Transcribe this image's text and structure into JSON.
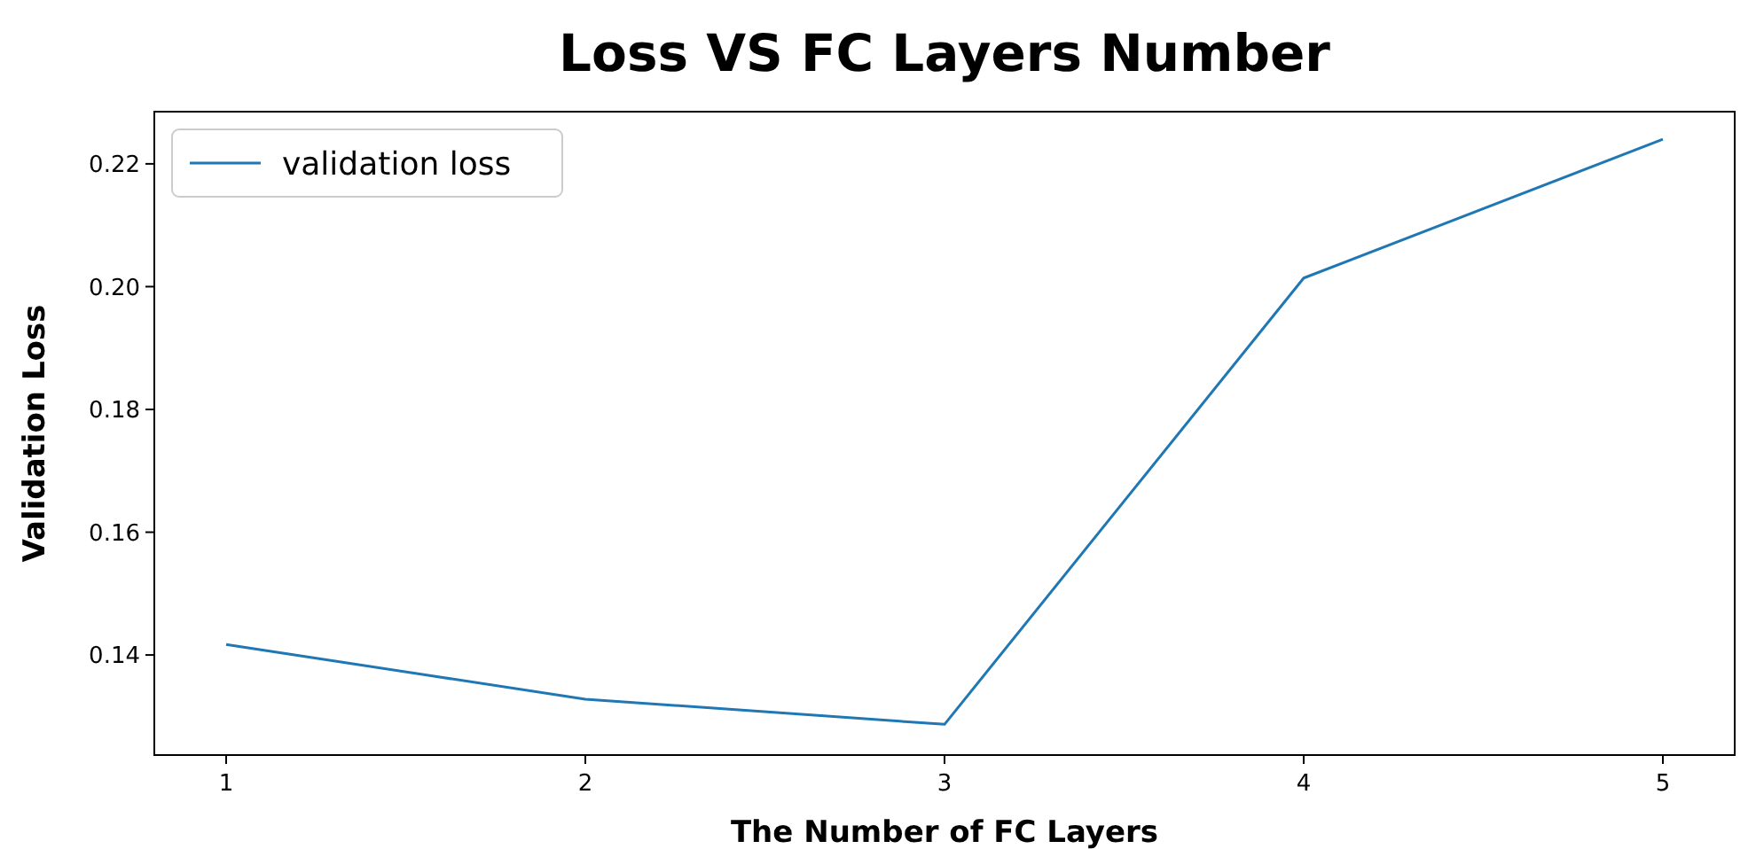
{
  "chart_data": {
    "type": "line",
    "title": "Loss VS FC Layers Number",
    "xlabel": "The Number of FC Layers",
    "ylabel": "Validation Loss",
    "x": [
      1,
      2,
      3,
      4,
      5
    ],
    "series": [
      {
        "name": "validation loss",
        "color": "#1f77b4",
        "values": [
          0.1417,
          0.1328,
          0.1287,
          0.2014,
          0.224
        ]
      }
    ],
    "xlim": [
      0.8,
      5.2
    ],
    "xticks": [
      1,
      2,
      3,
      4,
      5
    ],
    "ylim": [
      0.1237,
      0.2285
    ],
    "yticks": [
      0.14,
      0.16,
      0.18,
      {
        "value": 0.2,
        "label": "0.20"
      },
      0.22
    ],
    "legend": "top left",
    "grid": false,
    "marker": "none",
    "line_style": "solid"
  }
}
